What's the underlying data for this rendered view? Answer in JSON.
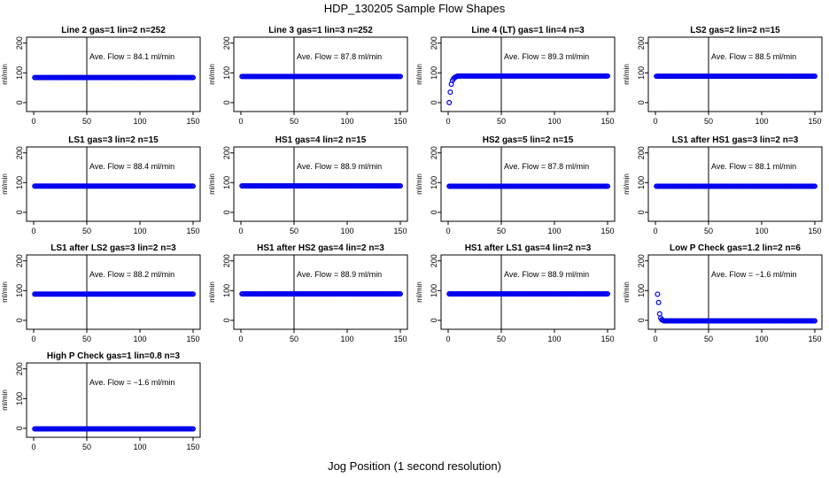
{
  "page": {
    "title": "HDP_130205  Sample Flow Shapes",
    "xlabel": "Jog Position (1 second resolution)"
  },
  "chart_data": [
    {
      "type": "scatter",
      "title": "Line 2 gas=1 lin=2 n=252",
      "ylabel": "ml/min",
      "xlim": [
        0,
        150
      ],
      "ylim": [
        -30,
        220
      ],
      "xticks": [
        0,
        50,
        100,
        150
      ],
      "yticks": [
        0,
        100,
        200
      ],
      "vline": 50,
      "annotation": "Ave. Flow =  84.1  ml/min",
      "marker_color": "#0000ee",
      "series": [
        {
          "shape": "constant",
          "x": [
            1,
            150
          ],
          "value": 84.1
        }
      ]
    },
    {
      "type": "scatter",
      "title": "Line 3 gas=1 lin=3 n=252",
      "ylabel": "ml/min",
      "xlim": [
        0,
        150
      ],
      "ylim": [
        -30,
        220
      ],
      "xticks": [
        0,
        50,
        100,
        150
      ],
      "yticks": [
        0,
        100,
        200
      ],
      "vline": 50,
      "annotation": "Ave. Flow =  87.8  ml/min",
      "marker_color": "#0000ee",
      "series": [
        {
          "shape": "constant",
          "x": [
            1,
            150
          ],
          "value": 87.8
        }
      ]
    },
    {
      "type": "scatter",
      "title": "Line 4 (LT) gas=1 lin=4 n=3",
      "ylabel": "ml/min",
      "xlim": [
        0,
        150
      ],
      "ylim": [
        -30,
        220
      ],
      "xticks": [
        0,
        50,
        100,
        150
      ],
      "yticks": [
        0,
        100,
        200
      ],
      "vline": 50,
      "annotation": "Ave. Flow =  89.3  ml/min",
      "marker_color": "#0000ee",
      "series": [
        {
          "shape": "rise",
          "x": [
            1,
            150
          ],
          "value": 89.3,
          "start_points": [
            [
              1,
              0
            ],
            [
              2,
              35
            ],
            [
              3,
              62
            ],
            [
              4,
              74
            ],
            [
              5,
              80
            ],
            [
              6,
              84
            ],
            [
              7,
              86
            ],
            [
              8,
              88
            ]
          ]
        }
      ]
    },
    {
      "type": "scatter",
      "title": "LS2 gas=2 lin=2 n=15",
      "ylabel": "ml/min",
      "xlim": [
        0,
        150
      ],
      "ylim": [
        -30,
        220
      ],
      "xticks": [
        0,
        50,
        100,
        150
      ],
      "yticks": [
        0,
        100,
        200
      ],
      "vline": 50,
      "annotation": "Ave. Flow =  88.5  ml/min",
      "marker_color": "#0000ee",
      "series": [
        {
          "shape": "constant",
          "x": [
            1,
            150
          ],
          "value": 88.5
        }
      ]
    },
    {
      "type": "scatter",
      "title": "LS1 gas=3 lin=2 n=15",
      "ylabel": "ml/min",
      "xlim": [
        0,
        150
      ],
      "ylim": [
        -30,
        220
      ],
      "xticks": [
        0,
        50,
        100,
        150
      ],
      "yticks": [
        0,
        100,
        200
      ],
      "vline": 50,
      "annotation": "Ave. Flow =  88.4  ml/min",
      "marker_color": "#0000ee",
      "series": [
        {
          "shape": "constant",
          "x": [
            1,
            150
          ],
          "value": 88.4
        }
      ]
    },
    {
      "type": "scatter",
      "title": "HS1 gas=4 lin=2 n=15",
      "ylabel": "ml/min",
      "xlim": [
        0,
        150
      ],
      "ylim": [
        -30,
        220
      ],
      "xticks": [
        0,
        50,
        100,
        150
      ],
      "yticks": [
        0,
        100,
        200
      ],
      "vline": 50,
      "annotation": "Ave. Flow =  88.9  ml/min",
      "marker_color": "#0000ee",
      "series": [
        {
          "shape": "constant",
          "x": [
            1,
            150
          ],
          "value": 88.9
        }
      ]
    },
    {
      "type": "scatter",
      "title": "HS2 gas=5 lin=2 n=15",
      "ylabel": "ml/min",
      "xlim": [
        0,
        150
      ],
      "ylim": [
        -30,
        220
      ],
      "xticks": [
        0,
        50,
        100,
        150
      ],
      "yticks": [
        0,
        100,
        200
      ],
      "vline": 50,
      "annotation": "Ave. Flow =  87.8  ml/min",
      "marker_color": "#0000ee",
      "series": [
        {
          "shape": "constant",
          "x": [
            1,
            150
          ],
          "value": 87.8
        }
      ]
    },
    {
      "type": "scatter",
      "title": "LS1 after HS1 gas=3 lin=2 n=3",
      "ylabel": "ml/min",
      "xlim": [
        0,
        150
      ],
      "ylim": [
        -30,
        220
      ],
      "xticks": [
        0,
        50,
        100,
        150
      ],
      "yticks": [
        0,
        100,
        200
      ],
      "vline": 50,
      "annotation": "Ave. Flow =  88.1  ml/min",
      "marker_color": "#0000ee",
      "series": [
        {
          "shape": "constant",
          "x": [
            1,
            150
          ],
          "value": 88.1
        }
      ]
    },
    {
      "type": "scatter",
      "title": "LS1 after LS2 gas=3 lin=2 n=3",
      "ylabel": "ml/min",
      "xlim": [
        0,
        150
      ],
      "ylim": [
        -30,
        220
      ],
      "xticks": [
        0,
        50,
        100,
        150
      ],
      "yticks": [
        0,
        100,
        200
      ],
      "vline": 50,
      "annotation": "Ave. Flow =  88.2  ml/min",
      "marker_color": "#0000ee",
      "series": [
        {
          "shape": "constant",
          "x": [
            1,
            150
          ],
          "value": 88.2
        }
      ]
    },
    {
      "type": "scatter",
      "title": "HS1 after HS2 gas=4 lin=2 n=3",
      "ylabel": "ml/min",
      "xlim": [
        0,
        150
      ],
      "ylim": [
        -30,
        220
      ],
      "xticks": [
        0,
        50,
        100,
        150
      ],
      "yticks": [
        0,
        100,
        200
      ],
      "vline": 50,
      "annotation": "Ave. Flow =  88.9  ml/min",
      "marker_color": "#0000ee",
      "series": [
        {
          "shape": "constant",
          "x": [
            1,
            150
          ],
          "value": 88.9
        }
      ]
    },
    {
      "type": "scatter",
      "title": "HS1 after LS1 gas=4 lin=2 n=3",
      "ylabel": "ml/min",
      "xlim": [
        0,
        150
      ],
      "ylim": [
        -30,
        220
      ],
      "xticks": [
        0,
        50,
        100,
        150
      ],
      "yticks": [
        0,
        100,
        200
      ],
      "vline": 50,
      "annotation": "Ave. Flow =  88.9  ml/min",
      "marker_color": "#0000ee",
      "series": [
        {
          "shape": "constant",
          "x": [
            1,
            150
          ],
          "value": 88.9
        }
      ]
    },
    {
      "type": "scatter",
      "title": "Low P Check gas=1.2 lin=2 n=6",
      "ylabel": "ml/min",
      "xlim": [
        0,
        150
      ],
      "ylim": [
        -30,
        220
      ],
      "xticks": [
        0,
        50,
        100,
        150
      ],
      "yticks": [
        0,
        100,
        200
      ],
      "vline": 50,
      "annotation": "Ave. Flow =  −1.6  ml/min",
      "marker_color": "#0000ee",
      "series": [
        {
          "shape": "decay",
          "x": [
            1,
            150
          ],
          "value": -1.6,
          "start_points": [
            [
              2,
              88
            ],
            [
              3,
              60
            ],
            [
              4,
              22
            ],
            [
              5,
              8
            ],
            [
              6,
              2
            ],
            [
              7,
              0
            ]
          ]
        }
      ]
    },
    {
      "type": "scatter",
      "title": "High P Check gas=1 lin=0.8 n=3",
      "ylabel": "ml/min",
      "xlim": [
        0,
        150
      ],
      "ylim": [
        -30,
        220
      ],
      "xticks": [
        0,
        50,
        100,
        150
      ],
      "yticks": [
        0,
        100,
        200
      ],
      "vline": 50,
      "annotation": "Ave. Flow =  −1.6  ml/min",
      "marker_color": "#0000ee",
      "series": [
        {
          "shape": "constant",
          "x": [
            1,
            150
          ],
          "value": -1.6
        }
      ]
    }
  ]
}
